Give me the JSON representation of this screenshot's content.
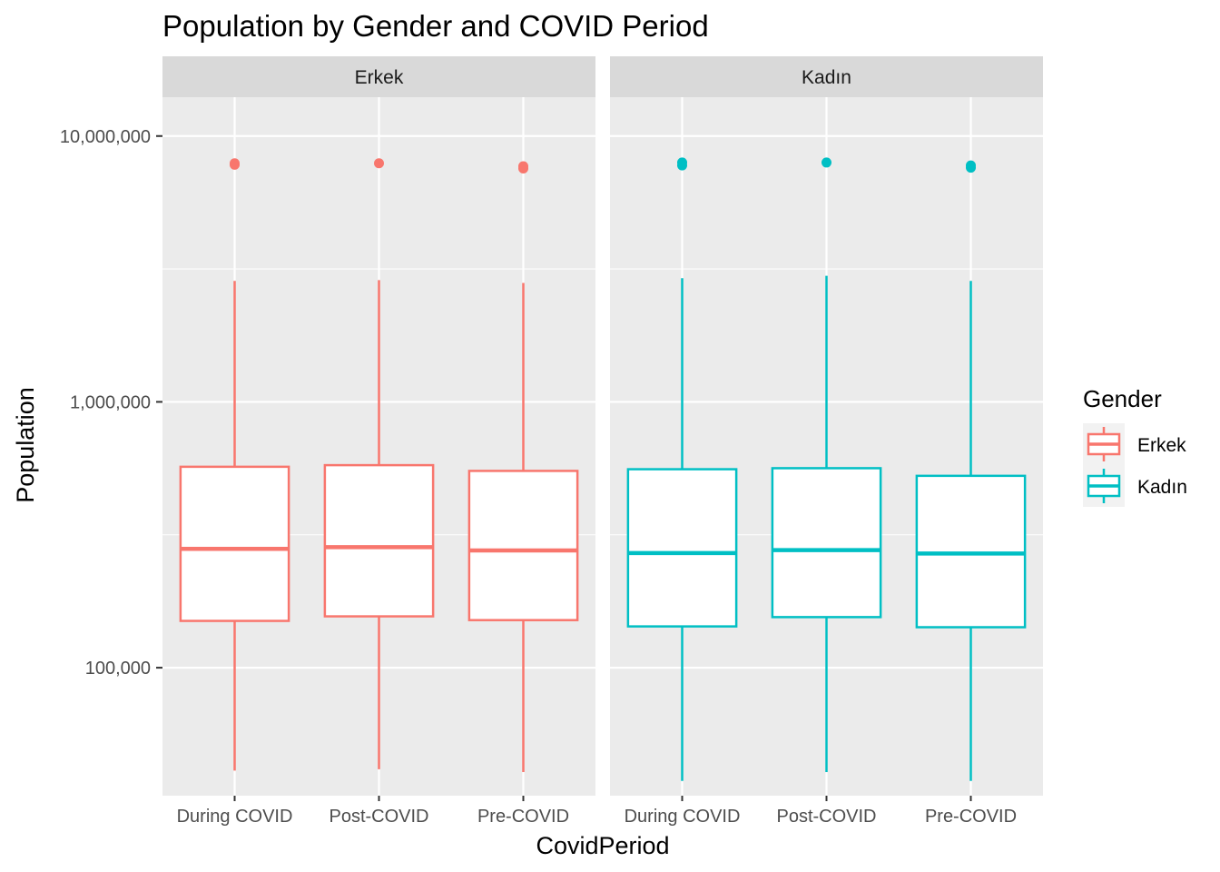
{
  "chart_data": {
    "type": "boxplot",
    "title": "Population by Gender and COVID Period",
    "xlabel": "CovidPeriod",
    "ylabel": "Population",
    "y_scale": "log10",
    "ylim": [
      33000,
      14000000
    ],
    "y_ticks": [
      100000,
      1000000,
      10000000
    ],
    "y_tick_labels": [
      "100,000",
      "1,000,000",
      "10,000,000"
    ],
    "categories": [
      "During COVID",
      "Post-COVID",
      "Pre-COVID"
    ],
    "grid": true,
    "legend": {
      "title": "Gender",
      "position": "right"
    },
    "panels": [
      {
        "strip": "Erkek",
        "color": "#F8766D",
        "boxes": [
          {
            "category": "During COVID",
            "whisker_low": 41000,
            "q1": 150000,
            "median": 280000,
            "q3": 570000,
            "whisker_high": 2850000,
            "outliers": [
              7800000,
              7900000
            ]
          },
          {
            "category": "Post-COVID",
            "whisker_low": 41500,
            "q1": 156000,
            "median": 284000,
            "q3": 578000,
            "whisker_high": 2870000,
            "outliers": [
              7900000
            ]
          },
          {
            "category": "Pre-COVID",
            "whisker_low": 40500,
            "q1": 151000,
            "median": 276000,
            "q3": 550000,
            "whisker_high": 2800000,
            "outliers": [
              7550000,
              7700000
            ]
          }
        ]
      },
      {
        "strip": "Kadın",
        "color": "#00BFC4",
        "boxes": [
          {
            "category": "During COVID",
            "whisker_low": 37500,
            "q1": 143000,
            "median": 270000,
            "q3": 558000,
            "whisker_high": 2920000,
            "outliers": [
              7750000,
              7950000
            ]
          },
          {
            "category": "Post-COVID",
            "whisker_low": 40500,
            "q1": 155000,
            "median": 277000,
            "q3": 563000,
            "whisker_high": 2980000,
            "outliers": [
              7950000
            ]
          },
          {
            "category": "Pre-COVID",
            "whisker_low": 37500,
            "q1": 142000,
            "median": 269000,
            "q3": 527000,
            "whisker_high": 2850000,
            "outliers": [
              7600000,
              7750000
            ]
          }
        ]
      }
    ],
    "series": [
      {
        "name": "Erkek",
        "color": "#F8766D"
      },
      {
        "name": "Kadın",
        "color": "#00BFC4"
      }
    ]
  }
}
